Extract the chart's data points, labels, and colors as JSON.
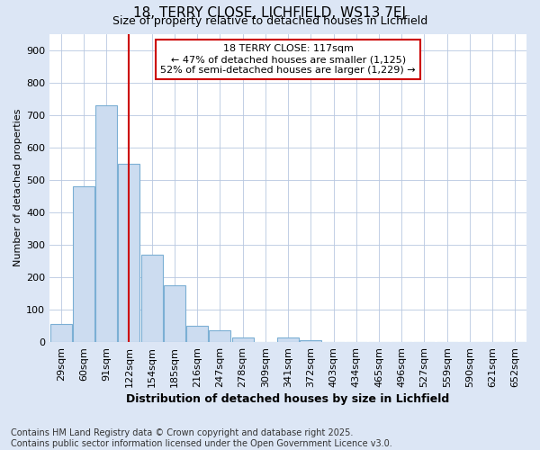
{
  "title1": "18, TERRY CLOSE, LICHFIELD, WS13 7EJ",
  "title2": "Size of property relative to detached houses in Lichfield",
  "xlabel": "Distribution of detached houses by size in Lichfield",
  "ylabel": "Number of detached properties",
  "footer1": "Contains HM Land Registry data © Crown copyright and database right 2025.",
  "footer2": "Contains public sector information licensed under the Open Government Licence v3.0.",
  "categories": [
    "29sqm",
    "60sqm",
    "91sqm",
    "122sqm",
    "154sqm",
    "185sqm",
    "216sqm",
    "247sqm",
    "278sqm",
    "309sqm",
    "341sqm",
    "372sqm",
    "403sqm",
    "434sqm",
    "465sqm",
    "496sqm",
    "527sqm",
    "559sqm",
    "590sqm",
    "621sqm",
    "652sqm"
  ],
  "values": [
    55,
    480,
    730,
    550,
    270,
    175,
    50,
    35,
    15,
    0,
    15,
    5,
    0,
    0,
    0,
    0,
    0,
    0,
    0,
    0,
    0
  ],
  "bar_color": "#ccdcf0",
  "bar_edge_color": "#7bafd4",
  "vline_x": 3.0,
  "vline_color": "#cc0000",
  "annotation_text": "18 TERRY CLOSE: 117sqm\n← 47% of detached houses are smaller (1,125)\n52% of semi-detached houses are larger (1,229) →",
  "annotation_box_color": "#ffffff",
  "annotation_box_edge": "#cc0000",
  "ylim": [
    0,
    950
  ],
  "yticks": [
    0,
    100,
    200,
    300,
    400,
    500,
    600,
    700,
    800,
    900
  ],
  "bg_color": "#dce6f5",
  "plot_bg_color": "#ffffff",
  "grid_color": "#b8c8e0",
  "title_fontsize": 11,
  "subtitle_fontsize": 9,
  "ylabel_fontsize": 8,
  "xlabel_fontsize": 9,
  "tick_fontsize": 8,
  "footer_fontsize": 7
}
